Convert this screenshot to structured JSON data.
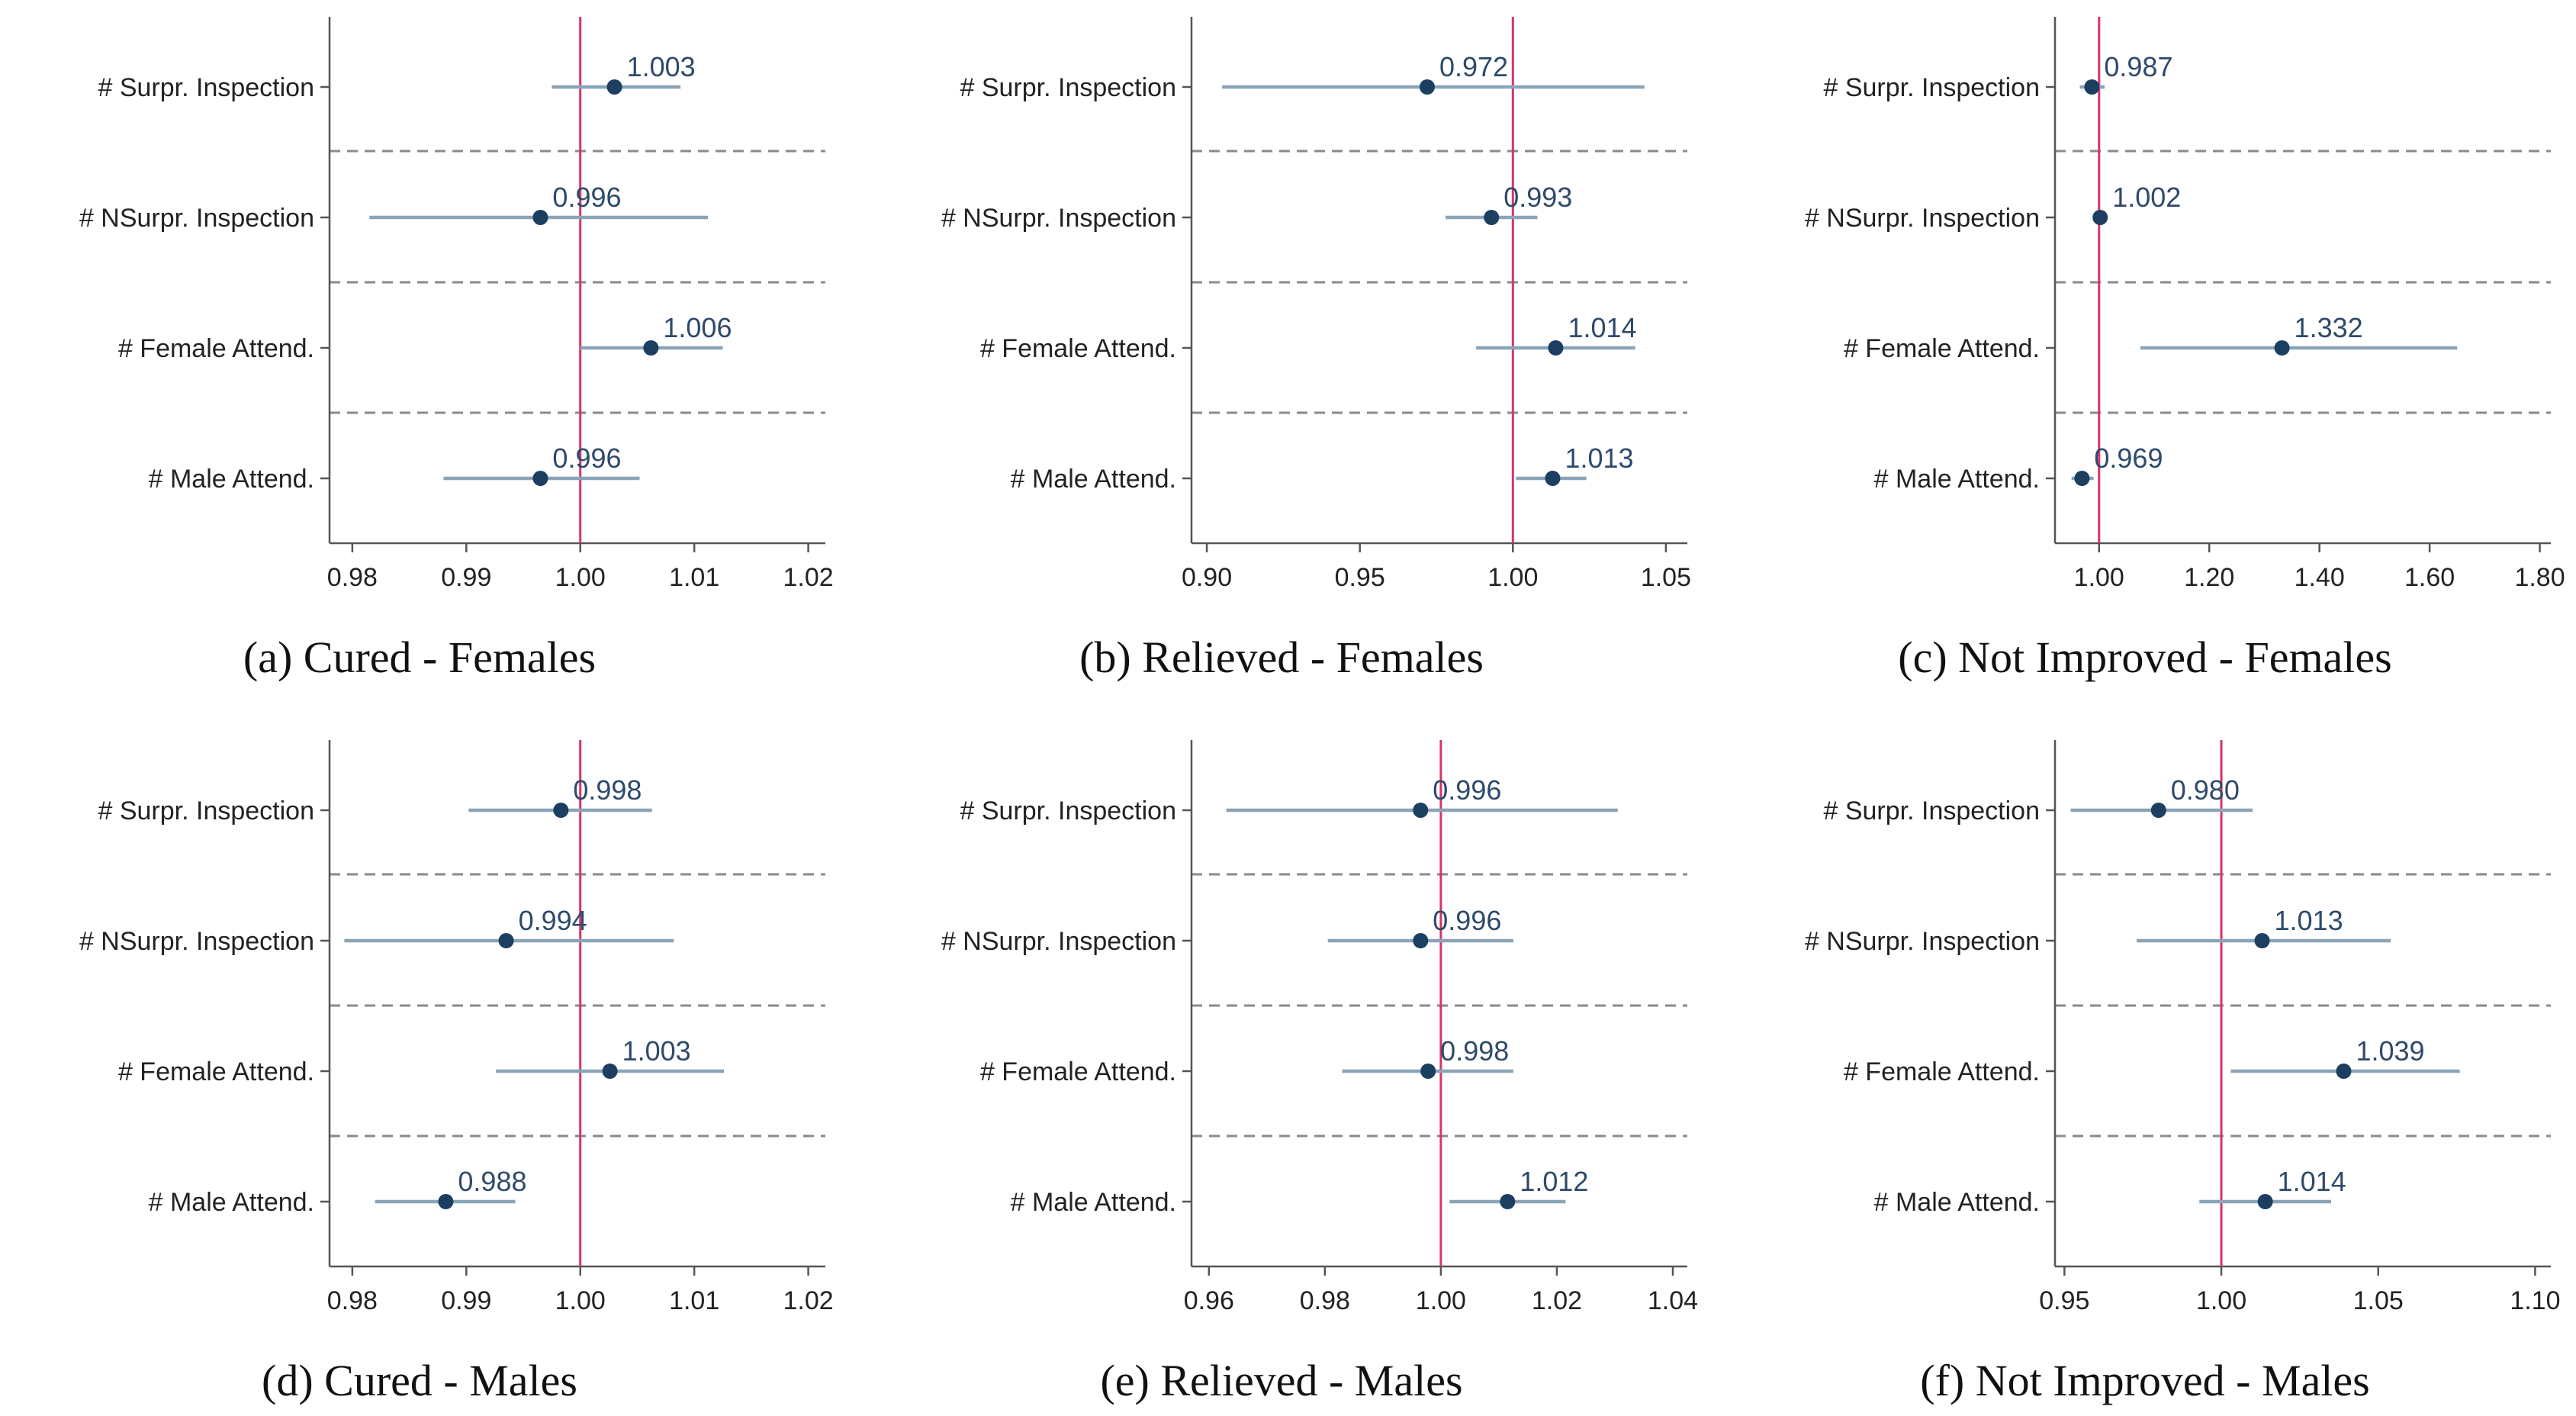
{
  "colors": {
    "point": "#1c3f61",
    "ci": "#8aa4b8",
    "refline": "#d6336c",
    "separator": "#8a8a8a",
    "axis": "#555555"
  },
  "rows": [
    "# Surpr. Inspection",
    "# NSurpr. Inspection",
    "# Female Attend.",
    "# Male Attend."
  ],
  "chart_data": [
    {
      "type": "scatter",
      "caption": "(a)  Cured  -  Females",
      "ref": 1.0,
      "xlim": [
        0.978,
        1.0215
      ],
      "ticks": [
        "0.98",
        "0.99",
        "1.00",
        "1.01",
        "1.02"
      ],
      "points": [
        {
          "label": "# Surpr. Inspection",
          "est": 1.003,
          "lo": 0.9975,
          "hi": 1.0088,
          "text": "1.003"
        },
        {
          "label": "# NSurpr. Inspection",
          "est": 0.9965,
          "lo": 0.9815,
          "hi": 1.0112,
          "text": "0.996"
        },
        {
          "label": "# Female Attend.",
          "est": 1.0062,
          "lo": 1.0,
          "hi": 1.0125,
          "text": "1.006"
        },
        {
          "label": "# Male Attend.",
          "est": 0.9965,
          "lo": 0.988,
          "hi": 1.0052,
          "text": "0.996"
        }
      ]
    },
    {
      "type": "scatter",
      "caption": "(b)  Relieved  -  Females",
      "ref": 1.0,
      "xlim": [
        0.895,
        1.057
      ],
      "ticks": [
        "0.90",
        "0.95",
        "1.00",
        "1.05"
      ],
      "points": [
        {
          "label": "# Surpr. Inspection",
          "est": 0.972,
          "lo": 0.905,
          "hi": 1.043,
          "text": "0.972"
        },
        {
          "label": "# NSurpr. Inspection",
          "est": 0.993,
          "lo": 0.978,
          "hi": 1.008,
          "text": "0.993"
        },
        {
          "label": "# Female Attend.",
          "est": 1.014,
          "lo": 0.988,
          "hi": 1.04,
          "text": "1.014"
        },
        {
          "label": "# Male Attend.",
          "est": 1.013,
          "lo": 1.001,
          "hi": 1.024,
          "text": "1.013"
        }
      ]
    },
    {
      "type": "scatter",
      "caption": "(c)  Not Improved  -  Females",
      "ref": 1.0,
      "xlim": [
        0.92,
        1.82
      ],
      "ticks": [
        "1.00",
        "1.20",
        "1.40",
        "1.60",
        "1.80"
      ],
      "points": [
        {
          "label": "# Surpr. Inspection",
          "est": 0.987,
          "lo": 0.965,
          "hi": 1.01,
          "text": "0.987"
        },
        {
          "label": "# NSurpr. Inspection",
          "est": 1.002,
          "lo": 0.99,
          "hi": 1.015,
          "text": "1.002"
        },
        {
          "label": "# Female Attend.",
          "est": 1.332,
          "lo": 1.075,
          "hi": 1.65,
          "text": "1.332"
        },
        {
          "label": "# Male Attend.",
          "est": 0.969,
          "lo": 0.95,
          "hi": 0.99,
          "text": "0.969"
        }
      ]
    },
    {
      "type": "scatter",
      "caption": "(d)  Cured  -  Males",
      "ref": 1.0,
      "xlim": [
        0.978,
        1.0215
      ],
      "ticks": [
        "0.98",
        "0.99",
        "1.00",
        "1.01",
        "1.02"
      ],
      "points": [
        {
          "label": "# Surpr. Inspection",
          "est": 0.9983,
          "lo": 0.9902,
          "hi": 1.0063,
          "text": "0.998"
        },
        {
          "label": "# NSurpr. Inspection",
          "est": 0.9935,
          "lo": 0.9793,
          "hi": 1.0082,
          "text": "0.994"
        },
        {
          "label": "# Female Attend.",
          "est": 1.0026,
          "lo": 0.9926,
          "hi": 1.0126,
          "text": "1.003"
        },
        {
          "label": "# Male Attend.",
          "est": 0.9882,
          "lo": 0.982,
          "hi": 0.9943,
          "text": "0.988"
        }
      ]
    },
    {
      "type": "scatter",
      "caption": "(e)  Relieved  -  Males",
      "ref": 1.0,
      "xlim": [
        0.957,
        1.0425
      ],
      "ticks": [
        "0.96",
        "0.98",
        "1.00",
        "1.02",
        "1.04"
      ],
      "points": [
        {
          "label": "# Surpr. Inspection",
          "est": 0.9965,
          "lo": 0.963,
          "hi": 1.0305,
          "text": "0.996"
        },
        {
          "label": "# NSurpr. Inspection",
          "est": 0.9965,
          "lo": 0.9805,
          "hi": 1.0125,
          "text": "0.996"
        },
        {
          "label": "# Female Attend.",
          "est": 0.9978,
          "lo": 0.983,
          "hi": 1.0125,
          "text": "0.998"
        },
        {
          "label": "# Male Attend.",
          "est": 1.0115,
          "lo": 1.0015,
          "hi": 1.0215,
          "text": "1.012"
        }
      ]
    },
    {
      "type": "scatter",
      "caption": "(f)  Not Improved  -  Males",
      "ref": 1.0,
      "xlim": [
        0.947,
        1.105
      ],
      "ticks": [
        "0.95",
        "1.00",
        "1.05",
        "1.10"
      ],
      "points": [
        {
          "label": "# Surpr. Inspection",
          "est": 0.98,
          "lo": 0.952,
          "hi": 1.01,
          "text": "0.980"
        },
        {
          "label": "# NSurpr. Inspection",
          "est": 1.013,
          "lo": 0.973,
          "hi": 1.054,
          "text": "1.013"
        },
        {
          "label": "# Female Attend.",
          "est": 1.039,
          "lo": 1.003,
          "hi": 1.076,
          "text": "1.039"
        },
        {
          "label": "# Male Attend.",
          "est": 1.014,
          "lo": 0.993,
          "hi": 1.035,
          "text": "1.014"
        }
      ]
    }
  ]
}
